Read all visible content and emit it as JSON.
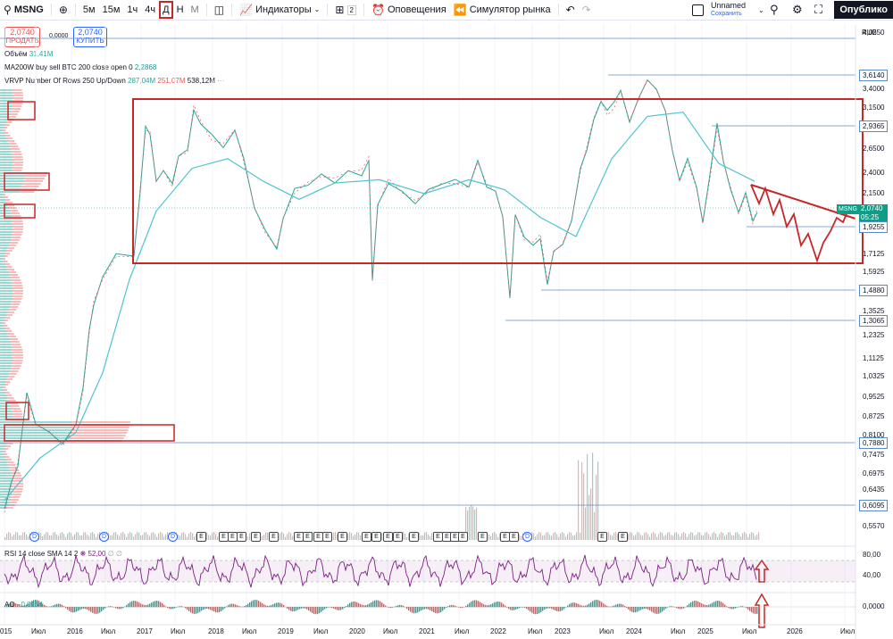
{
  "toolbar": {
    "symbol": "MSNG",
    "intervals": [
      "5м",
      "15м",
      "1ч",
      "4ч",
      "Д",
      "Н",
      "М"
    ],
    "active_interval": "Д",
    "indicators_label": "Индикаторы",
    "layouts_count": "2",
    "alerts_label": "Оповещения",
    "simulator_label": "Симулятор рынка",
    "layout_name": "Unnamed",
    "layout_status": "Сохранить",
    "publish_label": "Опублико"
  },
  "trade": {
    "sell_price": "2,0740",
    "sell_label": "ПРОДАТЬ",
    "spread": "0,0000",
    "buy_price": "2,0740",
    "buy_label": "КУПИТЬ"
  },
  "legend": {
    "volume_label": "Объём",
    "volume_value": "31,41M",
    "ma_label": "MA200W buy sell BTC 200 close open 0",
    "ma_value": "2,2868",
    "vrvp_label": "VRVP Number Of Rows 250 Up/Down",
    "vrvp_up": "287,04M",
    "vrvp_down": "251,07M",
    "vrvp_total": "538,12M",
    "rsi_label": "RSI 14 close SMA 14 2",
    "rsi_value": "52,00",
    "rsi_extra": "∅ ∅",
    "ao_label": "AO",
    "ao_value": "−0,0164"
  },
  "axis": {
    "currency": "RUB",
    "price_ticks": [
      "4,0250",
      "3,6140",
      "3,4000",
      "3,1500",
      "2,9365",
      "2,6500",
      "2,4000",
      "2,1500",
      "2,0740",
      "1,9255",
      "1,7125",
      "1,5925",
      "1,4880",
      "1,3525",
      "1,3065",
      "1,2325",
      "1,1125",
      "1,0325",
      "0,9525",
      "0,8725",
      "0,8100",
      "0,7880",
      "0,7475",
      "0,6975",
      "0,6435",
      "0,6095",
      "0,5570"
    ],
    "rsi_ticks": [
      "80,00",
      "40,00"
    ],
    "ao_ticks": [
      "0,0000"
    ],
    "time_labels": [
      "015",
      "Июл",
      "2016",
      "Июл",
      "2017",
      "Июл",
      "2018",
      "Июл",
      "2019",
      "Июл",
      "2020",
      "Июл",
      "2021",
      "Июл",
      "2022",
      "Июл",
      "2023",
      "Июл",
      "2024",
      "Июл",
      "2025",
      "Июл",
      "2026",
      "Июл"
    ]
  },
  "price": {
    "current": "2,0740",
    "countdown": "05:25",
    "symbol_tag": "MSNG",
    "levels": [
      "3,6140",
      "2,9365",
      "1,9255",
      "1,4880",
      "1,3065",
      "0,7880",
      "0,6095"
    ]
  },
  "events": [
    "D",
    "D",
    "D",
    "E",
    "E",
    "E",
    "E",
    "E",
    "E",
    "E",
    "E",
    "E",
    "E",
    "E",
    "E",
    "E",
    "E",
    "E",
    "E",
    "E",
    "E",
    "E",
    "E",
    "E",
    "E",
    "E",
    "D",
    "E",
    "E"
  ],
  "colors": {
    "up": "#26a69a",
    "down": "#ef5350",
    "ma": "#4fc3d0",
    "annotation": "#c62828",
    "level": "#5b8ac9",
    "rsi": "#7e1f86"
  }
}
